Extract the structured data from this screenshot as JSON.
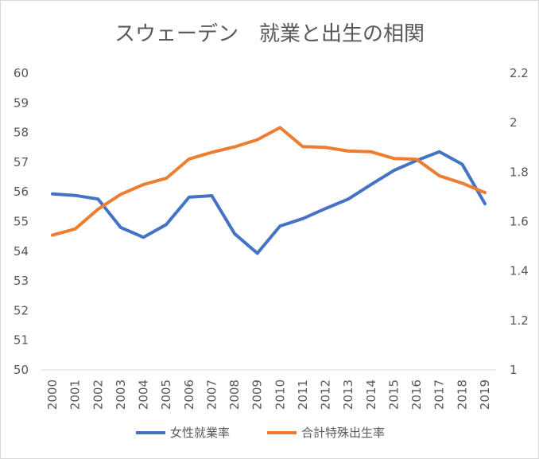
{
  "chart_data": {
    "type": "line",
    "title": "スウェーデン　就業と出生の相関",
    "categories": [
      "2000",
      "2001",
      "2002",
      "2003",
      "2004",
      "2005",
      "2006",
      "2007",
      "2008",
      "2009",
      "2010",
      "2011",
      "2012",
      "2013",
      "2014",
      "2015",
      "2016",
      "2017",
      "2018",
      "2019"
    ],
    "series": [
      {
        "name": "女性就業率",
        "axis": "left",
        "color": "#4472c4",
        "values": [
          55.93,
          55.88,
          55.76,
          54.8,
          54.47,
          54.9,
          55.82,
          55.87,
          54.59,
          53.93,
          54.85,
          55.1,
          55.44,
          55.76,
          56.25,
          56.72,
          57.06,
          57.35,
          56.93,
          55.6
        ]
      },
      {
        "name": "合計特殊出生率",
        "axis": "right",
        "color": "#ed7d31",
        "values": [
          1.545,
          1.57,
          1.65,
          1.71,
          1.75,
          1.775,
          1.853,
          1.88,
          1.902,
          1.931,
          1.98,
          1.903,
          1.9,
          1.885,
          1.882,
          1.855,
          1.852,
          1.785,
          1.755,
          1.717
        ]
      }
    ],
    "y_left": {
      "min": 50,
      "max": 60,
      "ticks": [
        "50",
        "51",
        "52",
        "53",
        "54",
        "55",
        "56",
        "57",
        "58",
        "59",
        "60"
      ]
    },
    "y_right": {
      "min": 1,
      "max": 2.2,
      "ticks": [
        "1",
        "1.2",
        "1.4",
        "1.6",
        "1.8",
        "2",
        "2.2"
      ]
    },
    "grid": false,
    "legend_position": "bottom"
  }
}
